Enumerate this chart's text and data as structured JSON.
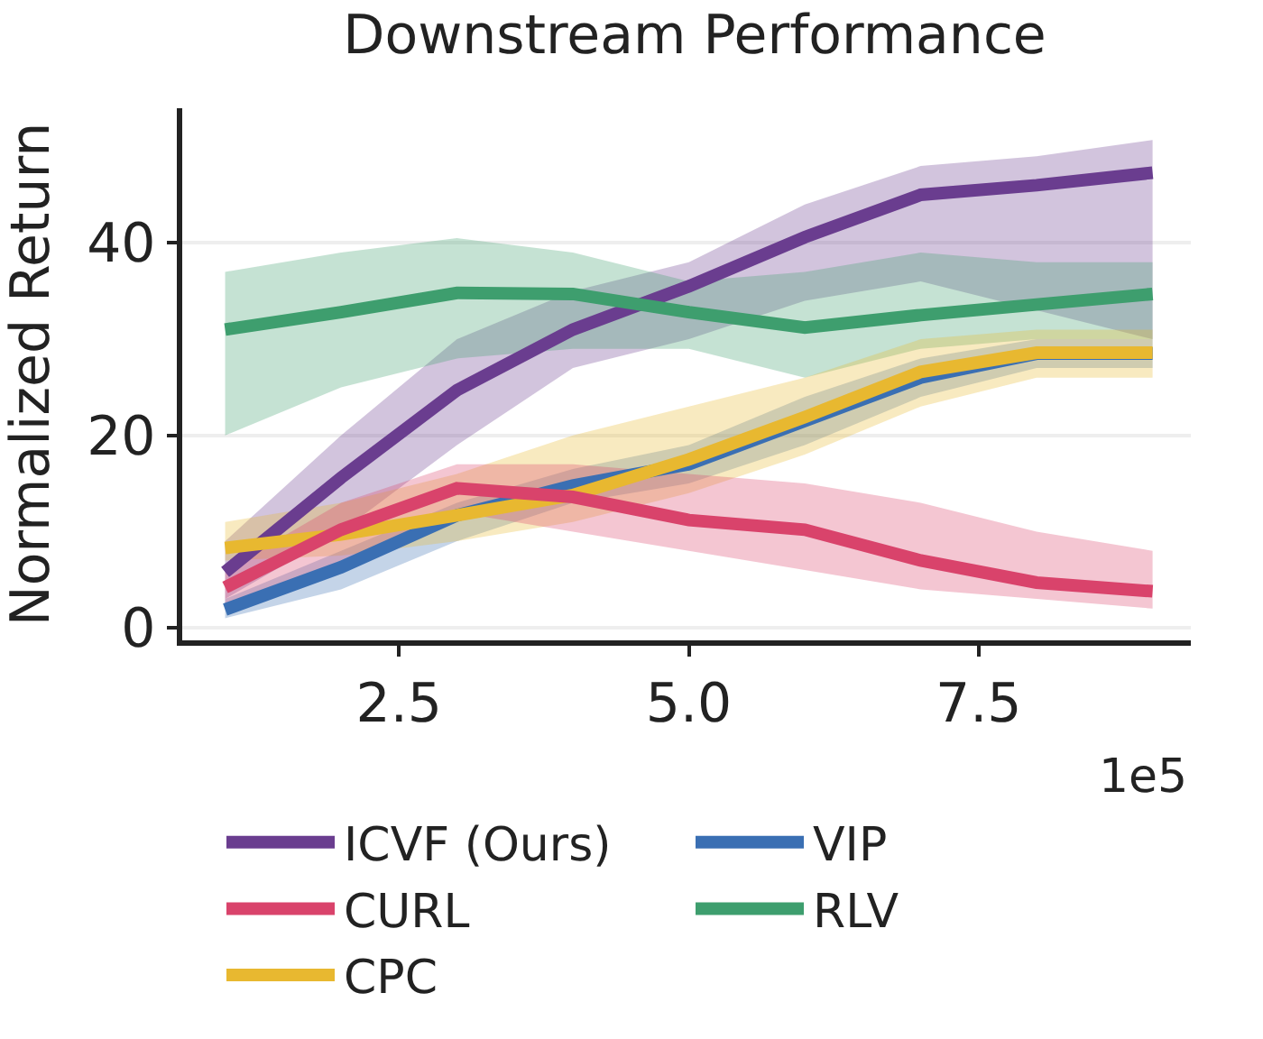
{
  "chart_data": {
    "type": "line",
    "title": "Downstream Performance",
    "ylabel": "Normalized Return",
    "annotations": [
      "1e5"
    ],
    "x": [
      1,
      2,
      3,
      4,
      5,
      6,
      7,
      8,
      9
    ],
    "xlim": [
      0.63,
      9.33
    ],
    "xticks": [
      2.5,
      {
        "value": 5,
        "label": "5.0"
      },
      7.5
    ],
    "ylim": [
      -1.3,
      54
    ],
    "yticks": [
      0,
      20,
      40
    ],
    "grid": "y",
    "legend": "bottom",
    "line_style": "solid",
    "marker": "none",
    "series": [
      {
        "name": "ICVF (Ours)",
        "color": "#6a3d8f",
        "values": [
          5.8,
          15.6,
          24.7,
          31,
          35.5,
          40.6,
          45,
          46,
          47.3
        ],
        "lower": [
          3,
          10,
          19,
          27,
          30,
          34,
          36,
          33,
          30
        ],
        "upper": [
          9,
          20,
          30,
          35,
          38,
          44,
          48,
          49,
          50.7
        ]
      },
      {
        "name": "RLV",
        "color": "#3e9e6e",
        "values": [
          31,
          32.8,
          34.8,
          34.7,
          32.8,
          31.2,
          32.5,
          33.6,
          34.7
        ],
        "lower": [
          20,
          25,
          28,
          29,
          29,
          26,
          29,
          30,
          30
        ],
        "upper": [
          37,
          39,
          40.5,
          39,
          36,
          37,
          39,
          38,
          38
        ]
      },
      {
        "name": "VIP",
        "color": "#3a6fb3",
        "values": [
          1.9,
          6.3,
          11.7,
          14.8,
          17,
          21.5,
          26,
          28.5,
          28.5
        ],
        "lower": [
          1,
          4,
          9,
          13,
          15,
          19,
          24,
          27,
          27
        ],
        "upper": [
          3,
          8,
          13,
          16.5,
          19,
          24,
          28,
          30,
          30
        ]
      },
      {
        "name": "CPC",
        "color": "#e8b830",
        "values": [
          8.3,
          9.7,
          11.7,
          13.8,
          17.5,
          21.9,
          26.6,
          28.6,
          28.6
        ],
        "lower": [
          7,
          7.5,
          9,
          11,
          14,
          18,
          23,
          26,
          26
        ],
        "upper": [
          11,
          13,
          16,
          20,
          23,
          26,
          30,
          31,
          31
        ]
      },
      {
        "name": "CURL",
        "color": "#d9436b",
        "values": [
          4.2,
          10.2,
          14.5,
          13.6,
          11.2,
          10.2,
          7,
          4.7,
          3.8
        ],
        "lower": [
          2,
          7,
          12,
          10,
          8,
          6,
          4,
          3,
          2
        ],
        "upper": [
          6,
          13,
          17,
          17,
          16,
          15,
          13,
          10,
          8
        ]
      }
    ]
  }
}
